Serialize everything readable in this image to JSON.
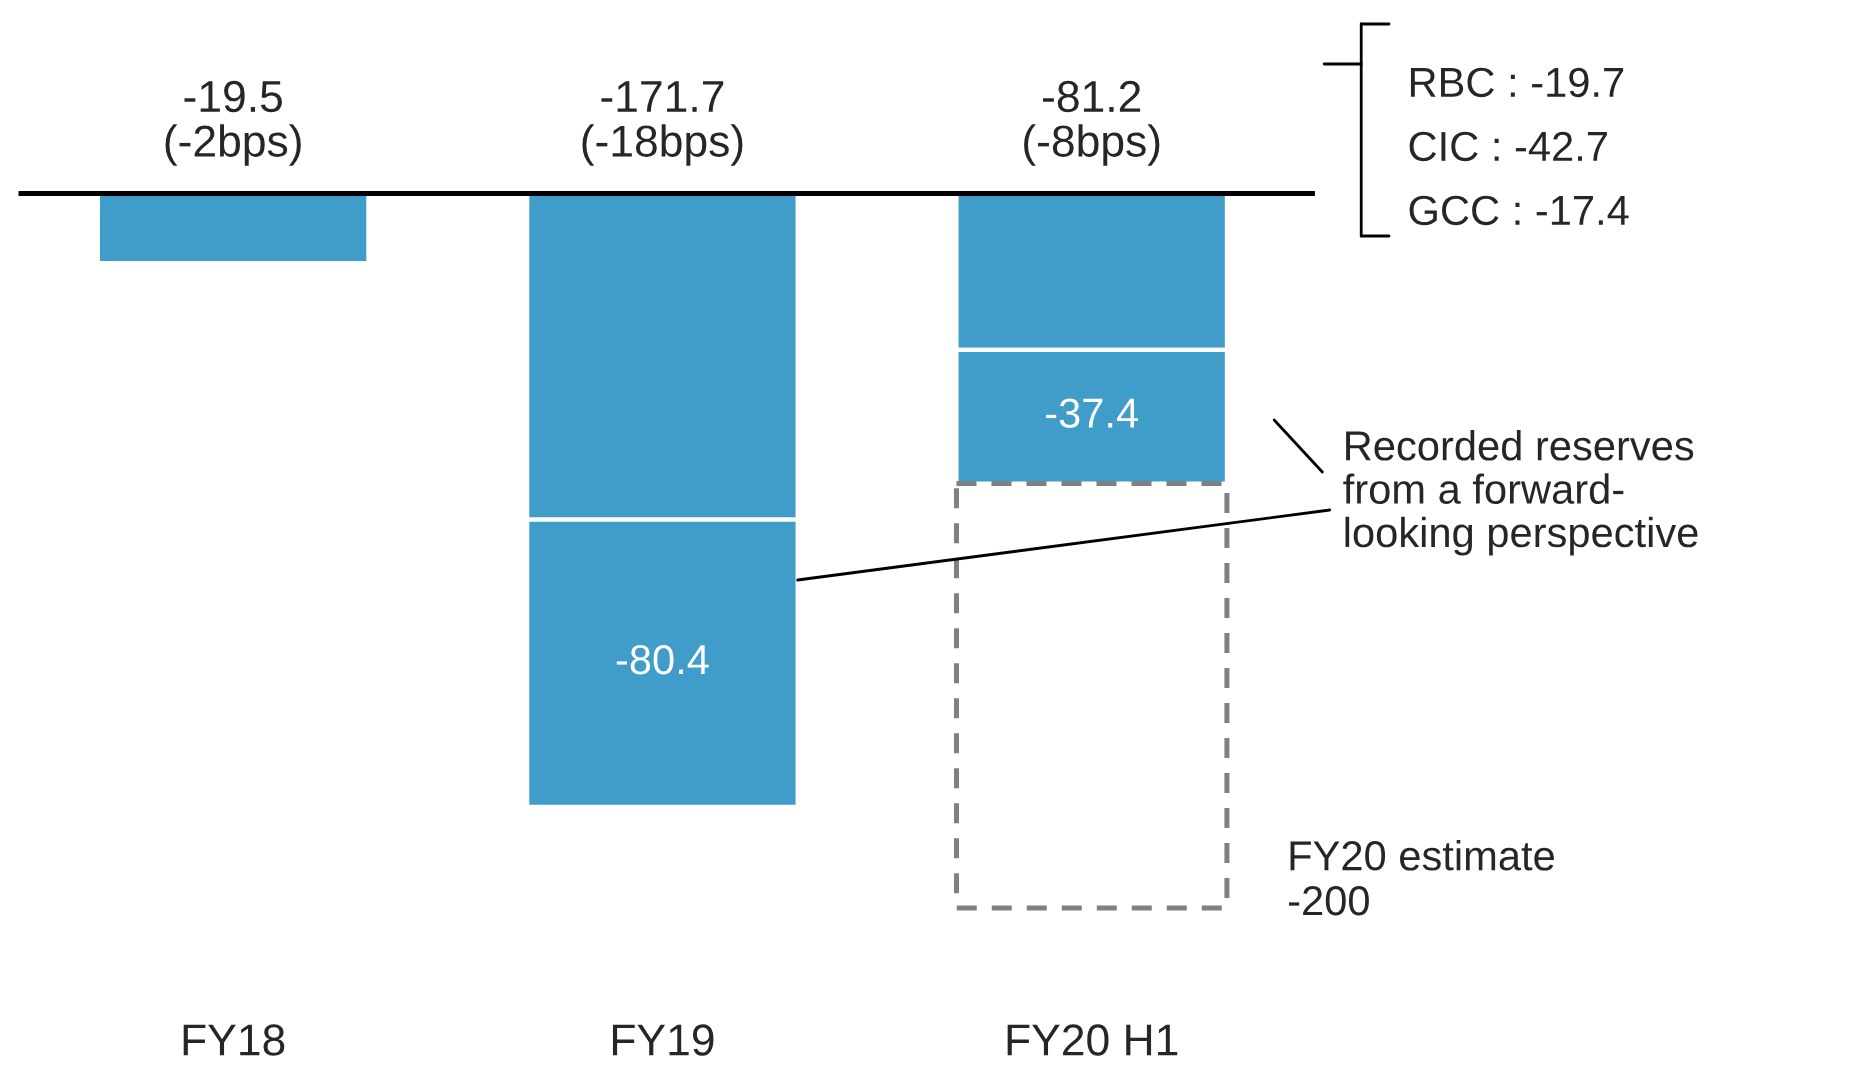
{
  "chart_data": {
    "type": "bar",
    "stacked": true,
    "categories": [
      "FY18",
      "FY19",
      "FY20 H1"
    ],
    "series": [
      {
        "color": "#409cc9",
        "values": [
          -19.5,
          -91.3,
          -43.8
        ]
      },
      {
        "color": "#409cc9",
        "values": [
          null,
          -80.4,
          -37.4
        ],
        "value_labels": [
          null,
          "-80.4",
          "-37.4"
        ]
      },
      {
        "color": "#808080",
        "values": [
          null,
          null,
          -118.8
        ],
        "line_style": "dashed"
      }
    ],
    "totals": [
      "-19.5\n(-2bps)",
      "-171.7\n(-18bps)",
      "-81.2\n(-8bps)"
    ],
    "annotations": [
      "RBC : -19.7",
      "CIC : -42.7",
      "GCC : -17.4",
      "Recorded reserves\nfrom a forward-\nlooking perspective",
      "FY20 estimate\n-200"
    ]
  }
}
